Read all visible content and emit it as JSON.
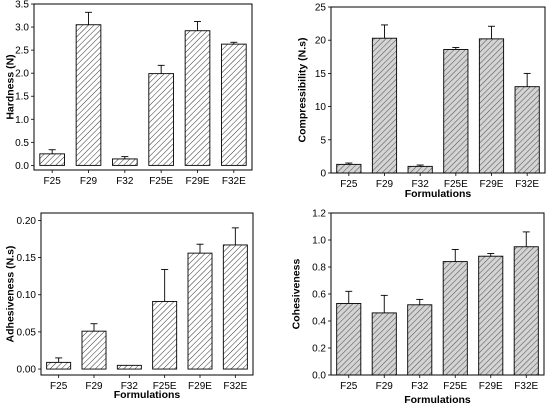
{
  "chart_data": [
    {
      "type": "bar",
      "categories": [
        "F25",
        "F29",
        "F32",
        "F25E",
        "F29E",
        "F32E"
      ],
      "values": [
        0.25,
        3.05,
        0.14,
        1.99,
        2.92,
        2.63
      ],
      "errors": [
        0.09,
        0.27,
        0.05,
        0.18,
        0.2,
        0.04
      ],
      "title": "",
      "xlabel": "",
      "ylabel": "Hardness (N)",
      "ylim": [
        -0.1,
        3.5
      ],
      "yticks": [
        0.0,
        0.5,
        1.0,
        1.5,
        2.0,
        2.5,
        3.0,
        3.5
      ],
      "ytick_labels": [
        "0.0",
        "0.5",
        "1.0",
        "1.5",
        "2.0",
        "2.5",
        "3.0",
        "3.5"
      ],
      "pattern": "diagonal-hatch",
      "bar_fill": "#ffffff",
      "grid": false
    },
    {
      "type": "bar",
      "categories": [
        "F25",
        "F29",
        "F32",
        "F25E",
        "F29E",
        "F32E"
      ],
      "values": [
        1.3,
        20.3,
        1.0,
        18.6,
        20.2,
        13.0
      ],
      "errors": [
        0.2,
        2.0,
        0.2,
        0.3,
        1.9,
        2.0
      ],
      "title": "",
      "xlabel": "Formulations",
      "ylabel": "Compressibility (N.s)",
      "ylim": [
        0,
        25
      ],
      "yticks": [
        0,
        5,
        10,
        15,
        20,
        25
      ],
      "ytick_labels": [
        "0",
        "5",
        "10",
        "15",
        "20",
        "25"
      ],
      "pattern": "diagonal-hatch",
      "bar_fill": "#d9d9d9",
      "grid": false
    },
    {
      "type": "bar",
      "categories": [
        "F25",
        "F29",
        "F32",
        "F25E",
        "F29E",
        "F32E"
      ],
      "values": [
        0.009,
        0.051,
        0.005,
        0.091,
        0.156,
        0.167
      ],
      "errors": [
        0.006,
        0.01,
        0.0,
        0.043,
        0.012,
        0.023
      ],
      "title": "",
      "xlabel": "Formulations",
      "ylabel": "Adhesiveness (N.s)",
      "ylim": [
        -0.008,
        0.21
      ],
      "yticks": [
        0.0,
        0.05,
        0.1,
        0.15,
        0.2
      ],
      "ytick_labels": [
        "0.00",
        "0.05",
        "0.10",
        "0.15",
        "0.20"
      ],
      "pattern": "diagonal-hatch",
      "bar_fill": "#ffffff",
      "grid": false
    },
    {
      "type": "bar",
      "categories": [
        "F25",
        "F29",
        "F32",
        "F25E",
        "F29E",
        "F32E"
      ],
      "values": [
        0.53,
        0.46,
        0.52,
        0.84,
        0.88,
        0.95
      ],
      "errors": [
        0.09,
        0.13,
        0.04,
        0.09,
        0.02,
        0.11
      ],
      "title": "",
      "xlabel": "Formulations",
      "ylabel": "Cohesiveness",
      "ylim": [
        0,
        1.2
      ],
      "yticks": [
        0.0,
        0.2,
        0.4,
        0.6,
        0.8,
        1.0,
        1.2
      ],
      "ytick_labels": [
        "0.0",
        "0.2",
        "0.4",
        "0.6",
        "0.8",
        "1.0",
        "1.2"
      ],
      "pattern": "diagonal-hatch",
      "bar_fill": "#d9d9d9",
      "grid": false
    }
  ]
}
